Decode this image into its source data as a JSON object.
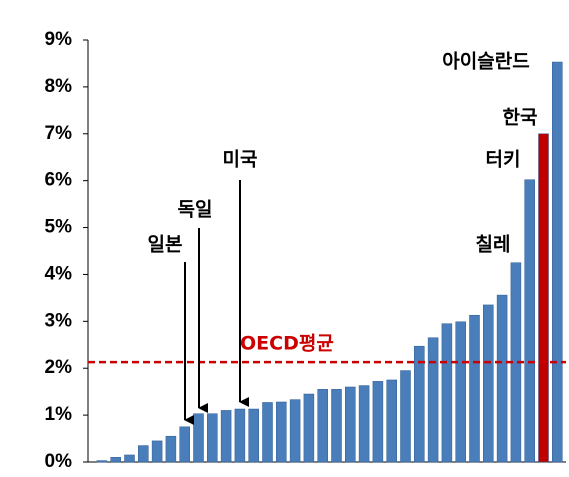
{
  "chart_data": {
    "type": "bar",
    "categories": [
      null,
      null,
      null,
      null,
      null,
      null,
      null,
      null,
      null,
      null,
      null,
      null,
      null,
      null,
      null,
      null,
      null,
      null,
      null,
      null,
      null,
      null,
      null,
      null,
      null,
      null,
      null,
      null,
      null,
      null,
      null,
      null,
      null,
      null
    ],
    "values": [
      0.03,
      0.1,
      0.15,
      0.35,
      0.45,
      0.55,
      0.75,
      1.03,
      1.03,
      1.1,
      1.13,
      1.13,
      1.27,
      1.28,
      1.33,
      1.45,
      1.55,
      1.55,
      1.6,
      1.63,
      1.72,
      1.75,
      1.95,
      2.47,
      2.65,
      2.95,
      2.99,
      3.13,
      3.35,
      3.56,
      4.25,
      6.02,
      7.0,
      8.53
    ],
    "colors": [
      "#4a7ebb",
      "#4a7ebb",
      "#4a7ebb",
      "#4a7ebb",
      "#4a7ebb",
      "#4a7ebb",
      "#4a7ebb",
      "#4a7ebb",
      "#4a7ebb",
      "#4a7ebb",
      "#4a7ebb",
      "#4a7ebb",
      "#4a7ebb",
      "#4a7ebb",
      "#4a7ebb",
      "#4a7ebb",
      "#4a7ebb",
      "#4a7ebb",
      "#4a7ebb",
      "#4a7ebb",
      "#4a7ebb",
      "#4a7ebb",
      "#4a7ebb",
      "#4a7ebb",
      "#4a7ebb",
      "#4a7ebb",
      "#4a7ebb",
      "#4a7ebb",
      "#4a7ebb",
      "#4a7ebb",
      "#4a7ebb",
      "#4a7ebb",
      "#c00000",
      "#4a7ebb"
    ],
    "ylim": [
      0,
      9
    ],
    "yticks": [
      {
        "value": 0,
        "label": "0%"
      },
      {
        "value": 1,
        "label": "1%"
      },
      {
        "value": 2,
        "label": "2%"
      },
      {
        "value": 3,
        "label": "3%"
      },
      {
        "value": 4,
        "label": "4%"
      },
      {
        "value": 5,
        "label": "5%"
      },
      {
        "value": 6,
        "label": "6%"
      },
      {
        "value": 7,
        "label": "7%"
      },
      {
        "value": 8,
        "label": "8%"
      },
      {
        "value": 9,
        "label": "9%"
      }
    ],
    "reference_line": {
      "label": "OECD평균",
      "value": 2.13,
      "color": "#cc0000"
    },
    "annotations": [
      "일본",
      "독일",
      "미국",
      "칠레",
      "터키",
      "한국",
      "아이슬란드"
    ]
  }
}
